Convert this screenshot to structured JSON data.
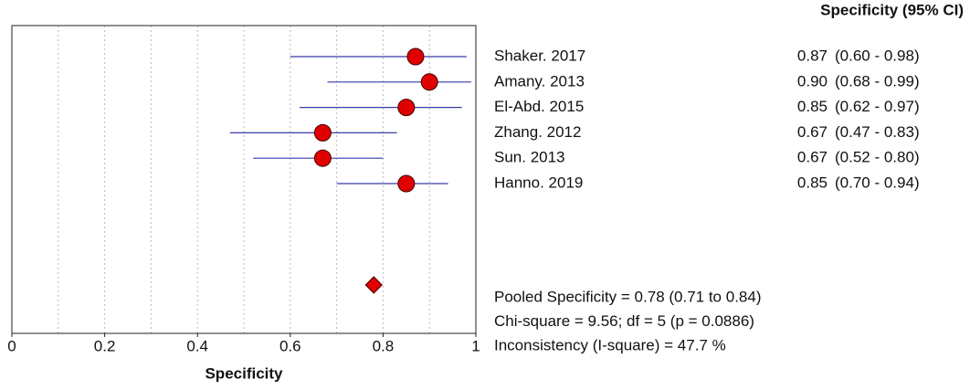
{
  "chart_data": {
    "type": "forest",
    "header": "Specificity (95% CI)",
    "xlabel": "Specificity",
    "categories": [
      "Shaker. 2017",
      "Amany. 2013",
      "El-Abd. 2015",
      "Zhang. 2012",
      "Sun. 2013",
      "Hanno. 2019"
    ],
    "values": [
      0.87,
      0.9,
      0.85,
      0.67,
      0.67,
      0.85
    ],
    "value_labels": [
      "0.87",
      "0.90",
      "0.85",
      "0.67",
      "0.67",
      "0.85"
    ],
    "ci_low": [
      0.6,
      0.68,
      0.62,
      0.47,
      0.52,
      0.7
    ],
    "ci_high": [
      0.98,
      0.99,
      0.97,
      0.83,
      0.8,
      0.94
    ],
    "ci_labels": [
      "(0.60 - 0.98)",
      "(0.68 - 0.99)",
      "(0.62 - 0.97)",
      "(0.47 - 0.83)",
      "(0.52 - 0.80)",
      "(0.70 - 0.94)"
    ],
    "pooled": 0.78,
    "annotations": [
      "Pooled Specificity = 0.78 (0.71 to 0.84)",
      "Chi-square = 9.56; df =  5 (p = 0.0886)",
      "Inconsistency (I-square) = 47.7 %"
    ],
    "xlim": [
      0,
      1
    ],
    "xticks": [
      0,
      0.2,
      0.4,
      0.6,
      0.8,
      1
    ],
    "minor_xticks": [
      0.1,
      0.2,
      0.3,
      0.4,
      0.5,
      0.6,
      0.7,
      0.8,
      0.9
    ],
    "marker_color": "#e00000",
    "ci_color": "#3a3aa8",
    "grid": true
  }
}
